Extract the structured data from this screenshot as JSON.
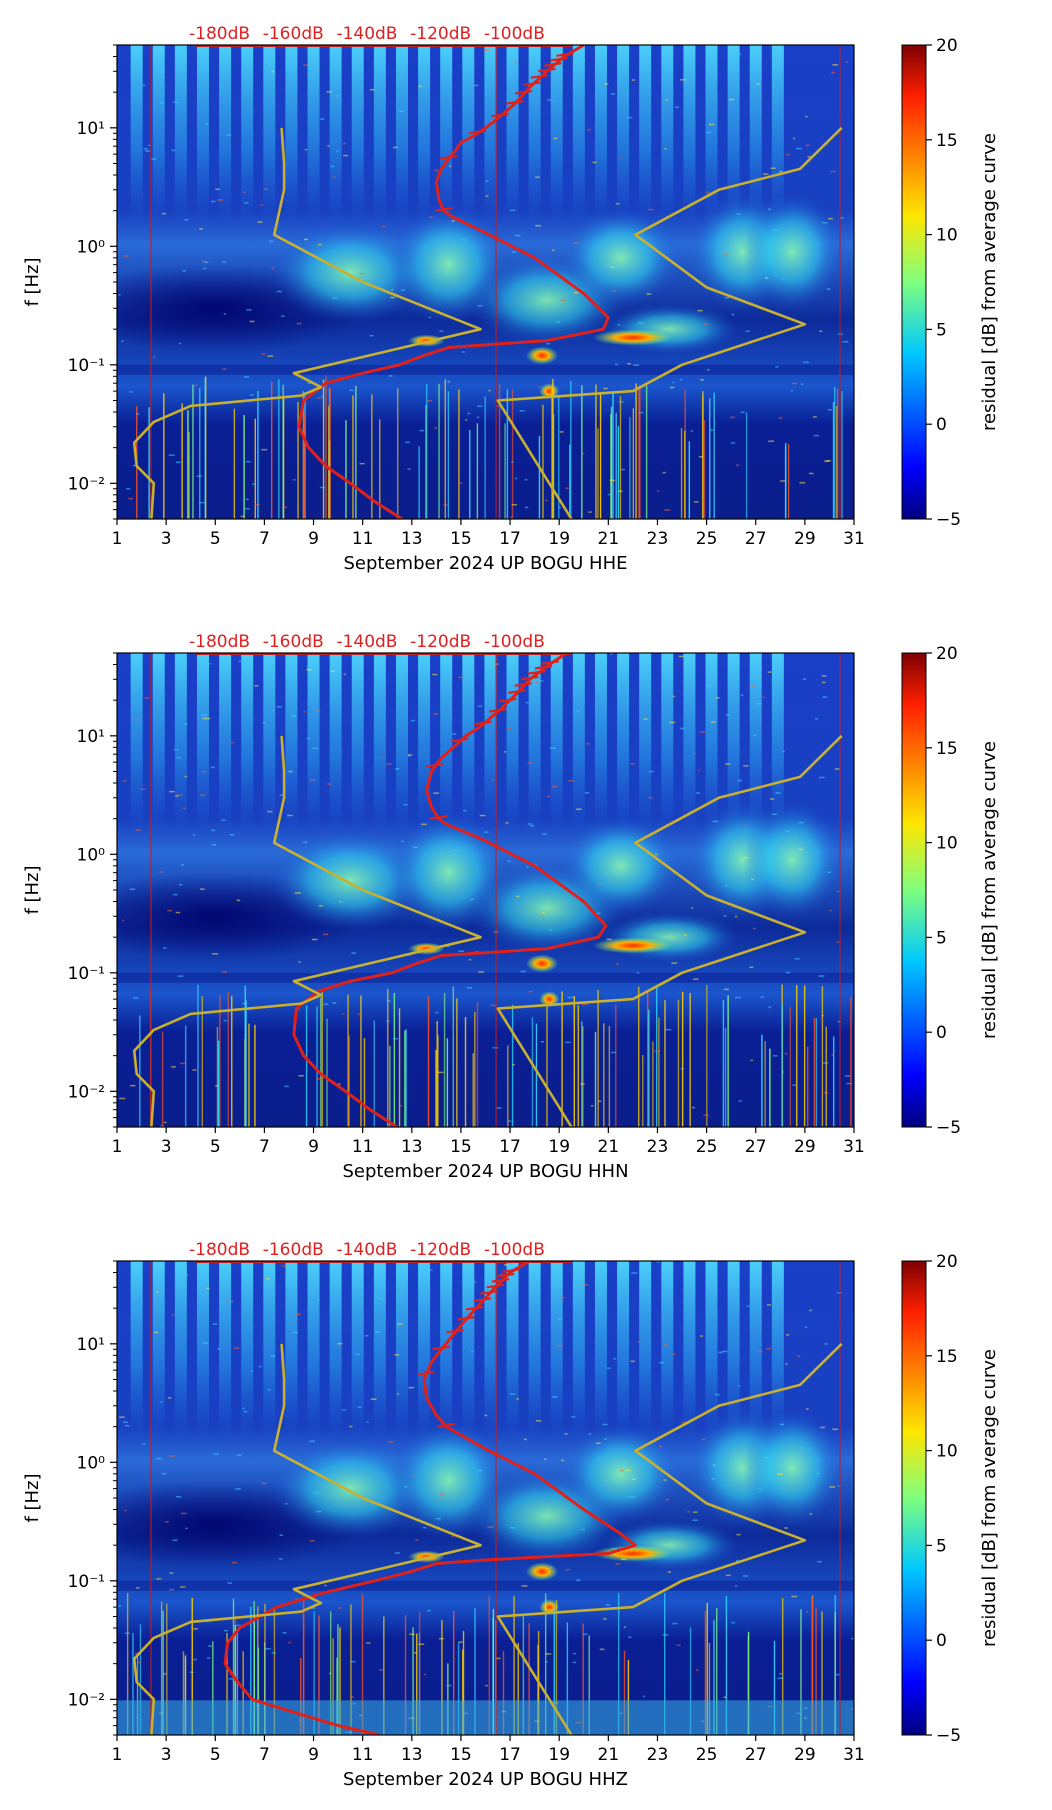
{
  "chart_data": [
    {
      "type": "heatmap",
      "title": "",
      "xlabel": "September 2024 UP BOGU  HHE",
      "ylabel": "f [Hz]",
      "xlim": [
        1,
        31
      ],
      "ylim": [
        0.005,
        50
      ],
      "x_ticks": [
        "1",
        "3",
        "5",
        "7",
        "9",
        "11",
        "13",
        "15",
        "17",
        "19",
        "21",
        "23",
        "25",
        "27",
        "29",
        "31"
      ],
      "y_ticks": [
        "10⁻²",
        "10⁻¹",
        "10⁰",
        "10¹"
      ],
      "db_scale_labels": [
        "-180dB",
        "-160dB",
        "-140dB",
        "-120dB",
        "-100dB"
      ],
      "colorbar": {
        "label": "residual [dB] from average curve",
        "min": -5,
        "max": 20,
        "ticks": [
          "−5",
          "0",
          "5",
          "10",
          "15",
          "20"
        ]
      },
      "series": [
        {
          "name": "average spectrum",
          "color": "#e0201a",
          "x": [
            20,
            19.2,
            18.5,
            17.8,
            17.2,
            16.5,
            16.0,
            15.5,
            15.0,
            14.8,
            14.5,
            14.2,
            14.0,
            14.1,
            14.3,
            14.6,
            16.0,
            18.0,
            20.0,
            21.0,
            20.8,
            18.5,
            16.5,
            14.5,
            13.5,
            12.5,
            11.0,
            9.5,
            8.6,
            8.4,
            8.8,
            9.5,
            10.5,
            11.5,
            12.6
          ],
          "y": [
            50,
            40,
            30,
            22,
            16,
            12,
            10,
            8.5,
            7.5,
            6.5,
            5.5,
            4.5,
            3.5,
            2.5,
            2.0,
            1.8,
            1.3,
            0.8,
            0.4,
            0.25,
            0.2,
            0.16,
            0.15,
            0.14,
            0.12,
            0.1,
            0.085,
            0.07,
            0.05,
            0.03,
            0.02,
            0.014,
            0.01,
            0.007,
            0.005
          ]
        },
        {
          "name": "reference model (left)",
          "color": "#c8b030",
          "x": [
            7.7,
            7.8,
            7.8,
            7.4,
            11.0,
            15.8,
            8.2,
            9.3,
            8.5,
            4.0,
            2.5,
            1.7,
            1.8,
            2.5,
            2.4
          ],
          "y": [
            10,
            5,
            3,
            1.25,
            0.5,
            0.2,
            0.085,
            0.065,
            0.055,
            0.045,
            0.033,
            0.022,
            0.014,
            0.01,
            0.005
          ]
        },
        {
          "name": "reference model (right)",
          "color": "#c8b030",
          "x": [
            30.5,
            28.8,
            25.5,
            22.1,
            25.0,
            29.0,
            24.0,
            22.0,
            16.5,
            19.5
          ],
          "y": [
            10,
            4.5,
            3.0,
            1.25,
            0.45,
            0.22,
            0.1,
            0.06,
            0.05,
            0.005
          ]
        }
      ]
    },
    {
      "type": "heatmap",
      "title": "",
      "xlabel": "September 2024 UP BOGU  HHN",
      "ylabel": "f [Hz]",
      "xlim": [
        1,
        31
      ],
      "ylim": [
        0.005,
        50
      ],
      "x_ticks": [
        "1",
        "3",
        "5",
        "7",
        "9",
        "11",
        "13",
        "15",
        "17",
        "19",
        "21",
        "23",
        "25",
        "27",
        "29",
        "31"
      ],
      "y_ticks": [
        "10⁻²",
        "10⁻¹",
        "10⁰",
        "10¹"
      ],
      "db_scale_labels": [
        "-180dB",
        "-160dB",
        "-140dB",
        "-120dB",
        "-100dB"
      ],
      "colorbar": {
        "label": "residual [dB] from average curve",
        "min": -5,
        "max": 20,
        "ticks": [
          "−5",
          "0",
          "5",
          "10",
          "15",
          "20"
        ]
      },
      "series": [
        {
          "name": "average spectrum",
          "color": "#e0201a",
          "x": [
            19.3,
            18.6,
            17.8,
            17.2,
            16.5,
            15.8,
            15.2,
            14.7,
            14.2,
            13.8,
            13.6,
            13.8,
            14.1,
            14.4,
            16.0,
            18.0,
            20.0,
            20.9,
            20.6,
            18.5,
            16.5,
            14.2,
            13.2,
            12.2,
            10.5,
            9.2,
            8.3,
            8.2,
            8.6,
            9.3,
            10.3,
            11.3,
            12.4
          ],
          "y": [
            50,
            40,
            30,
            22,
            16,
            12,
            10,
            8.0,
            6.5,
            5.0,
            3.5,
            2.5,
            2.0,
            1.8,
            1.3,
            0.8,
            0.4,
            0.25,
            0.2,
            0.16,
            0.15,
            0.14,
            0.12,
            0.1,
            0.085,
            0.07,
            0.05,
            0.03,
            0.02,
            0.014,
            0.01,
            0.007,
            0.005
          ]
        },
        {
          "name": "reference model (left)",
          "color": "#c8b030",
          "x": [
            7.7,
            7.8,
            7.8,
            7.4,
            11.0,
            15.8,
            8.2,
            9.3,
            8.5,
            4.0,
            2.5,
            1.7,
            1.8,
            2.5,
            2.4
          ],
          "y": [
            10,
            5,
            3,
            1.25,
            0.5,
            0.2,
            0.085,
            0.065,
            0.055,
            0.045,
            0.033,
            0.022,
            0.014,
            0.01,
            0.005
          ]
        },
        {
          "name": "reference model (right)",
          "color": "#c8b030",
          "x": [
            30.5,
            28.8,
            25.5,
            22.1,
            25.0,
            29.0,
            24.0,
            22.0,
            16.5,
            19.5
          ],
          "y": [
            10,
            4.5,
            3.0,
            1.25,
            0.45,
            0.22,
            0.1,
            0.06,
            0.05,
            0.005
          ]
        }
      ]
    },
    {
      "type": "heatmap",
      "title": "",
      "xlabel": "September 2024 UP BOGU  HHZ",
      "ylabel": "f [Hz]",
      "xlim": [
        1,
        31
      ],
      "ylim": [
        0.005,
        50
      ],
      "x_ticks": [
        "1",
        "3",
        "5",
        "7",
        "9",
        "11",
        "13",
        "15",
        "17",
        "19",
        "21",
        "23",
        "25",
        "27",
        "29",
        "31"
      ],
      "y_ticks": [
        "10⁻²",
        "10⁻¹",
        "10⁰",
        "10¹"
      ],
      "db_scale_labels": [
        "-180dB",
        "-160dB",
        "-140dB",
        "-120dB",
        "-100dB"
      ],
      "colorbar": {
        "label": "residual [dB] from average curve",
        "min": -5,
        "max": 20,
        "ticks": [
          "−5",
          "0",
          "5",
          "10",
          "15",
          "20"
        ]
      },
      "series": [
        {
          "name": "average spectrum",
          "color": "#e0201a",
          "x": [
            17.8,
            17.0,
            16.4,
            15.8,
            15.2,
            14.7,
            14.2,
            13.8,
            13.5,
            13.6,
            14.0,
            14.4,
            16.0,
            18.0,
            20.0,
            21.5,
            22.1,
            21.0,
            18.5,
            16.0,
            14.0,
            13.0,
            11.5,
            9.5,
            7.5,
            6.0,
            5.5,
            5.4,
            5.8,
            6.5,
            8.0,
            10.0,
            11.7
          ],
          "y": [
            50,
            40,
            30,
            22,
            16,
            12,
            9.0,
            7.0,
            5.0,
            3.5,
            2.5,
            2.0,
            1.3,
            0.8,
            0.4,
            0.25,
            0.2,
            0.17,
            0.16,
            0.15,
            0.14,
            0.12,
            0.1,
            0.08,
            0.06,
            0.04,
            0.03,
            0.02,
            0.015,
            0.01,
            0.008,
            0.006,
            0.005
          ]
        },
        {
          "name": "reference model (left)",
          "color": "#c8b030",
          "x": [
            7.7,
            7.8,
            7.8,
            7.4,
            11.0,
            15.8,
            8.2,
            9.3,
            8.5,
            4.0,
            2.5,
            1.7,
            1.8,
            2.5,
            2.4
          ],
          "y": [
            10,
            5,
            3,
            1.25,
            0.5,
            0.2,
            0.085,
            0.065,
            0.055,
            0.045,
            0.033,
            0.022,
            0.014,
            0.01,
            0.005
          ]
        },
        {
          "name": "reference model (right)",
          "color": "#c8b030",
          "x": [
            30.5,
            28.8,
            25.5,
            22.1,
            25.0,
            29.0,
            24.0,
            22.0,
            16.5,
            19.5
          ],
          "y": [
            10,
            4.5,
            3.0,
            1.25,
            0.45,
            0.22,
            0.1,
            0.06,
            0.05,
            0.005
          ]
        }
      ]
    }
  ]
}
